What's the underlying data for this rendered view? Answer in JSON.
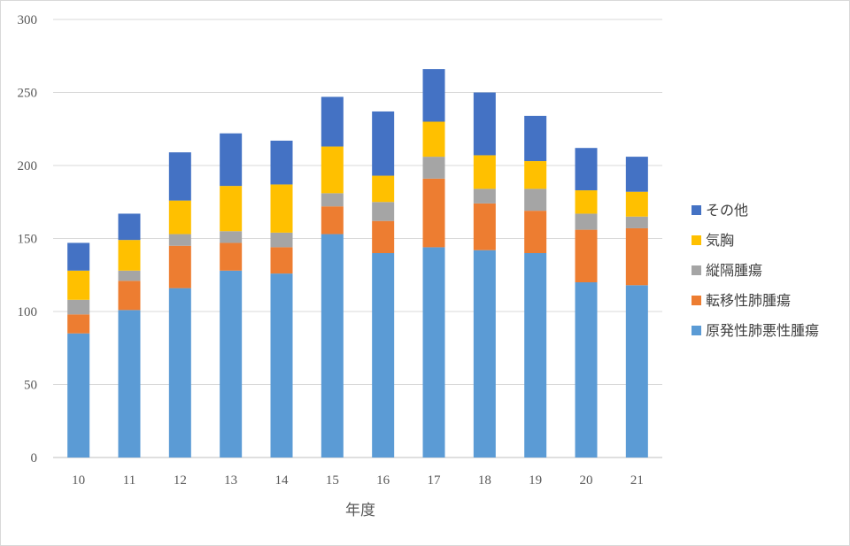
{
  "chart_data": {
    "type": "bar",
    "stacked": true,
    "categories": [
      "10",
      "11",
      "12",
      "13",
      "14",
      "15",
      "16",
      "17",
      "18",
      "19",
      "20",
      "21"
    ],
    "xlabel": "年度",
    "ylabel": "",
    "ylim": [
      0,
      300
    ],
    "yticks": [
      0,
      50,
      100,
      150,
      200,
      250,
      300
    ],
    "grid": true,
    "legend_position": "right",
    "series": [
      {
        "name": "原発性肺悪性腫瘍",
        "color": "#5B9BD5",
        "values": [
          85,
          101,
          116,
          128,
          126,
          153,
          140,
          144,
          142,
          140,
          120,
          118
        ]
      },
      {
        "name": "転移性肺腫瘍",
        "color": "#ED7D31",
        "values": [
          13,
          20,
          29,
          19,
          18,
          19,
          22,
          47,
          32,
          29,
          36,
          39
        ]
      },
      {
        "name": "縦隔腫瘍",
        "color": "#A5A5A5",
        "values": [
          10,
          7,
          8,
          8,
          10,
          9,
          13,
          15,
          10,
          15,
          11,
          8
        ]
      },
      {
        "name": "気胸",
        "color": "#FFC000",
        "values": [
          20,
          21,
          23,
          31,
          33,
          32,
          18,
          24,
          23,
          19,
          16,
          17
        ]
      },
      {
        "name": "その他",
        "color": "#4472C4",
        "values": [
          19,
          18,
          33,
          36,
          30,
          34,
          44,
          36,
          43,
          31,
          29,
          24
        ]
      }
    ]
  }
}
